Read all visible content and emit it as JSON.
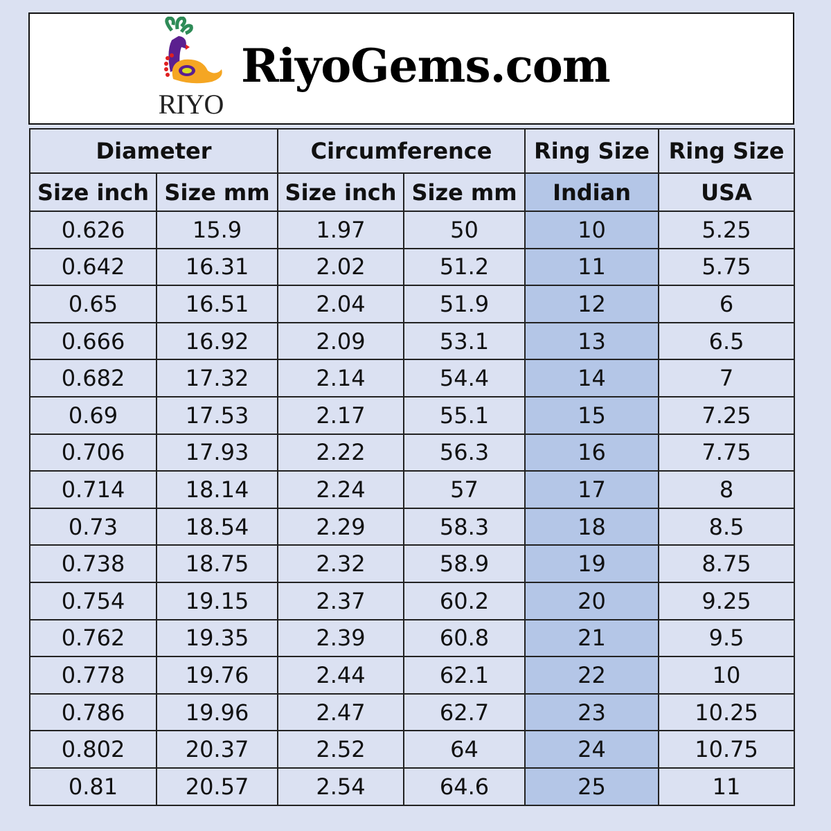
{
  "brand": {
    "logo_text": "RIYO",
    "site_title": "RiyoGems.com"
  },
  "colors": {
    "background": "#dbe1f2",
    "highlight_column": "#b4c6e7"
  },
  "table": {
    "group_headers": [
      "Diameter",
      "Circumference",
      "Ring Size",
      "Ring Size"
    ],
    "sub_headers": [
      "Size inch",
      "Size mm",
      "Size inch",
      "Size mm",
      "Indian",
      "USA"
    ],
    "rows": [
      [
        "0.626",
        "15.9",
        "1.97",
        "50",
        "10",
        "5.25"
      ],
      [
        "0.642",
        "16.31",
        "2.02",
        "51.2",
        "11",
        "5.75"
      ],
      [
        "0.65",
        "16.51",
        "2.04",
        "51.9",
        "12",
        "6"
      ],
      [
        "0.666",
        "16.92",
        "2.09",
        "53.1",
        "13",
        "6.5"
      ],
      [
        "0.682",
        "17.32",
        "2.14",
        "54.4",
        "14",
        "7"
      ],
      [
        "0.69",
        "17.53",
        "2.17",
        "55.1",
        "15",
        "7.25"
      ],
      [
        "0.706",
        "17.93",
        "2.22",
        "56.3",
        "16",
        "7.75"
      ],
      [
        "0.714",
        "18.14",
        "2.24",
        "57",
        "17",
        "8"
      ],
      [
        "0.73",
        "18.54",
        "2.29",
        "58.3",
        "18",
        "8.5"
      ],
      [
        "0.738",
        "18.75",
        "2.32",
        "58.9",
        "19",
        "8.75"
      ],
      [
        "0.754",
        "19.15",
        "2.37",
        "60.2",
        "20",
        "9.25"
      ],
      [
        "0.762",
        "19.35",
        "2.39",
        "60.8",
        "21",
        "9.5"
      ],
      [
        "0.778",
        "19.76",
        "2.44",
        "62.1",
        "22",
        "10"
      ],
      [
        "0.786",
        "19.96",
        "2.47",
        "62.7",
        "23",
        "10.25"
      ],
      [
        "0.802",
        "20.37",
        "2.52",
        "64",
        "24",
        "10.75"
      ],
      [
        "0.81",
        "20.57",
        "2.54",
        "64.6",
        "25",
        "11"
      ]
    ]
  }
}
